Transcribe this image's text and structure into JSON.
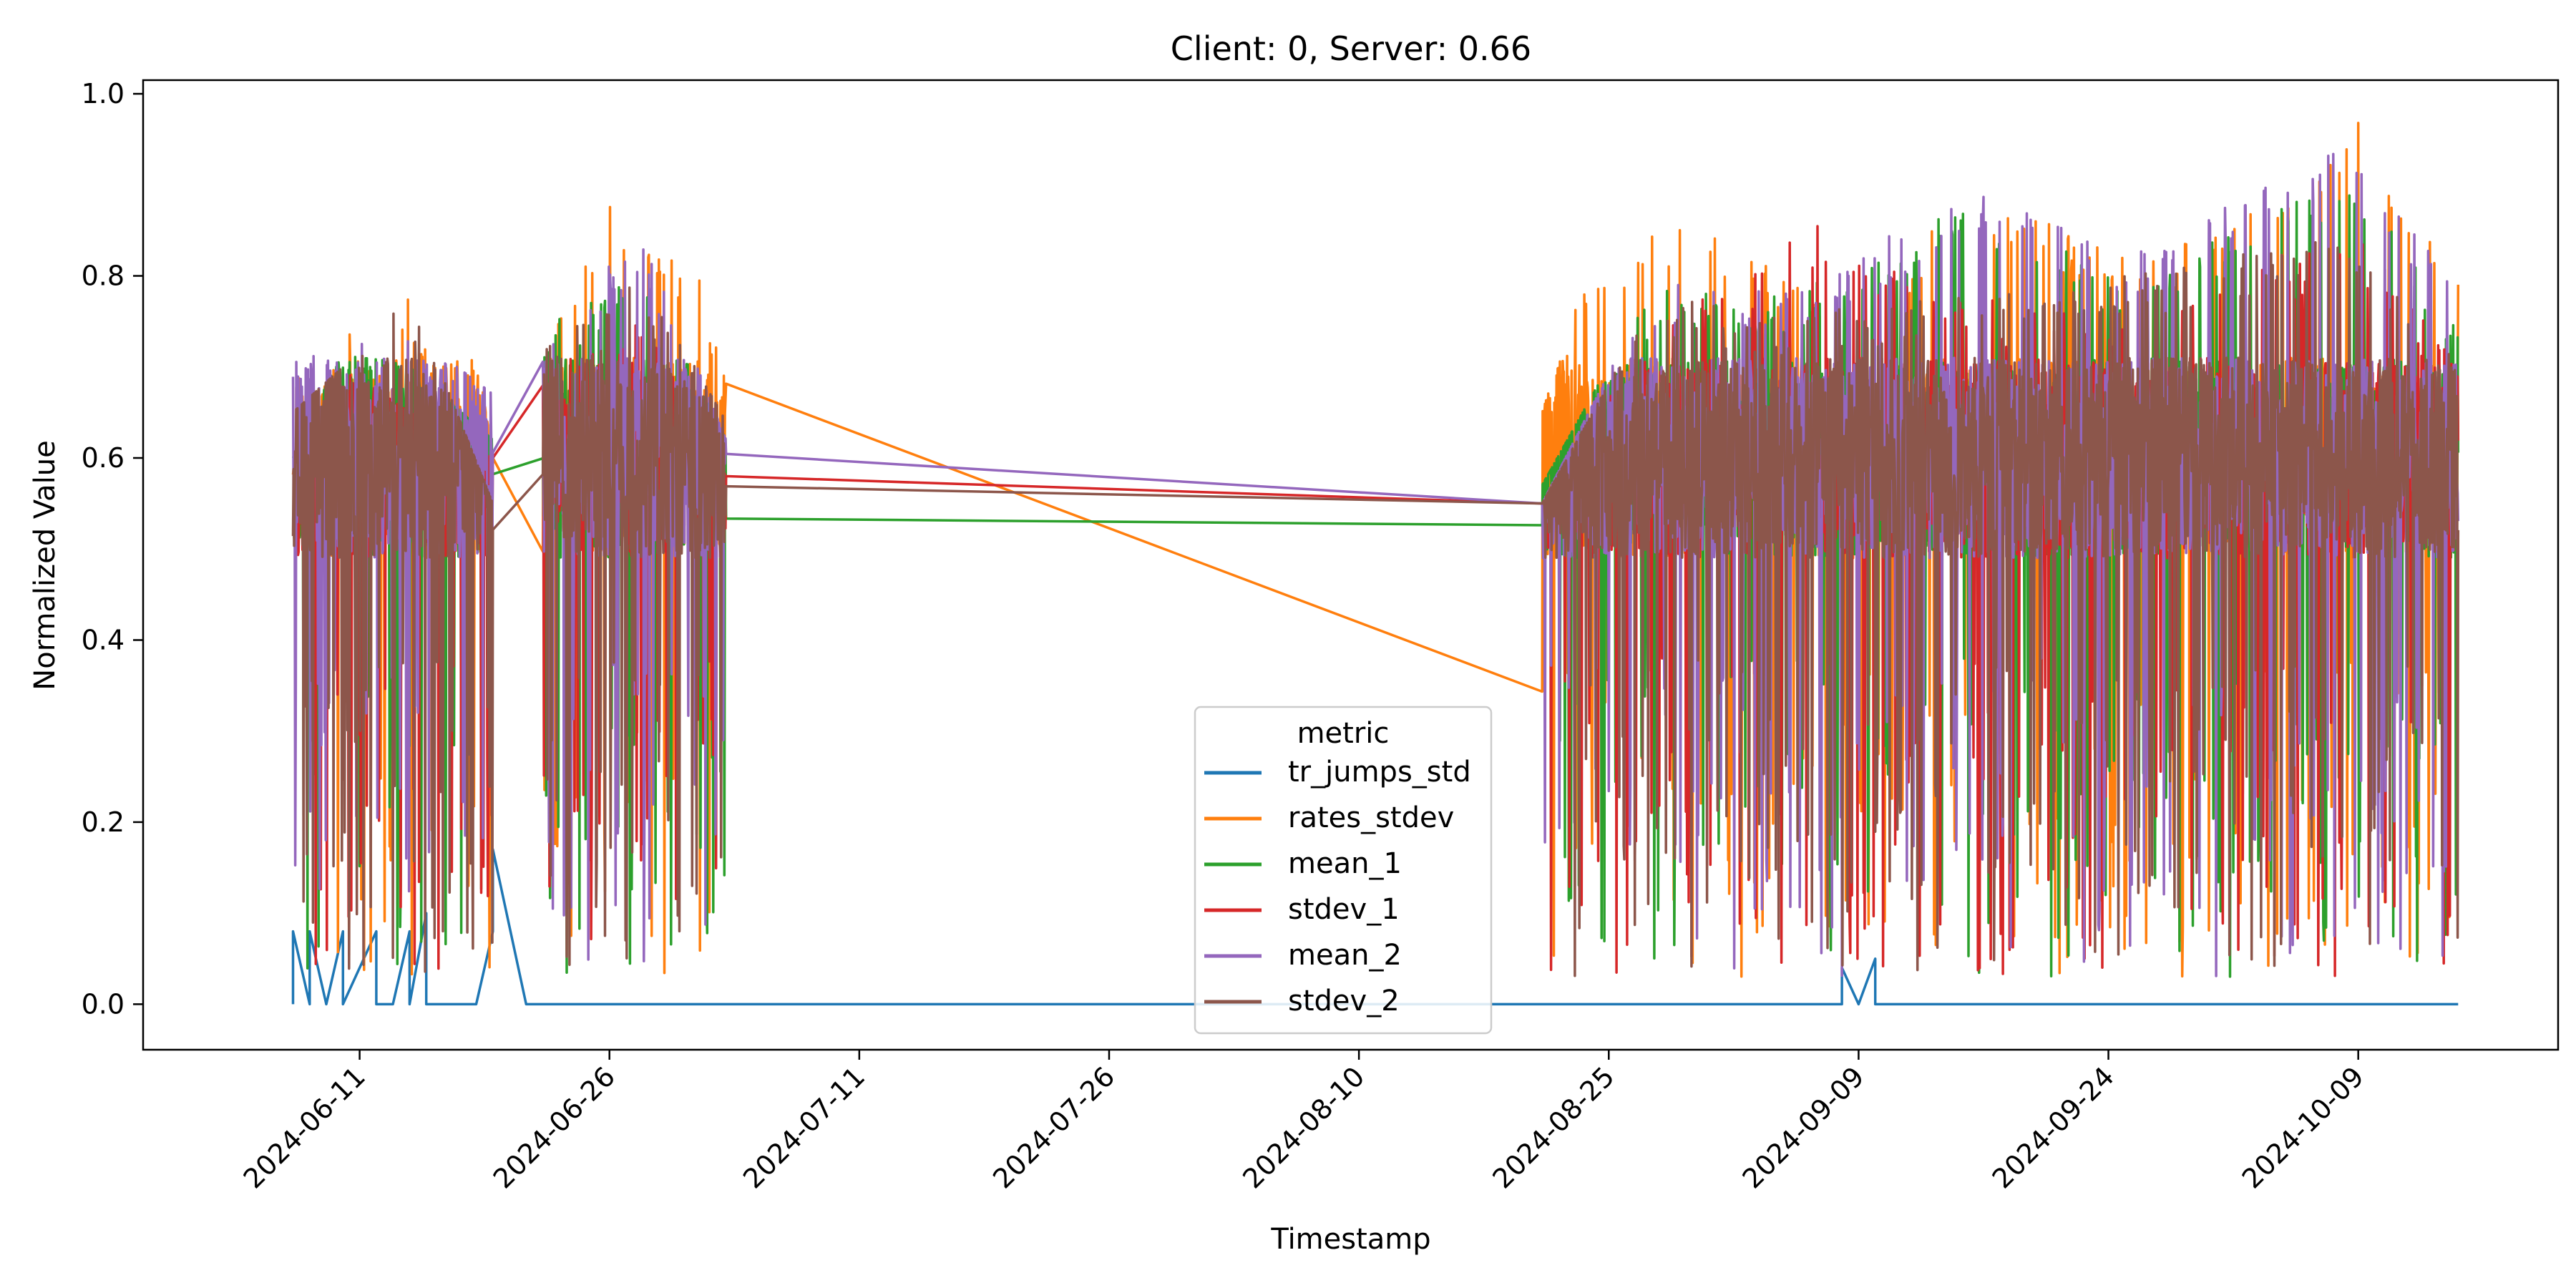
{
  "chart_data": {
    "type": "line",
    "title": "Client: 0, Server: 0.66",
    "xlabel": "Timestamp",
    "ylabel": "Normalized Value",
    "ylim": [
      -0.05,
      1.015
    ],
    "xlim": [
      "2024-05-29",
      "2024-10-21"
    ],
    "x_ticks": [
      "2024-06-11",
      "2024-06-26",
      "2024-07-11",
      "2024-07-26",
      "2024-08-10",
      "2024-08-25",
      "2024-09-09",
      "2024-09-24",
      "2024-10-09"
    ],
    "y_ticks": [
      0.0,
      0.2,
      0.4,
      0.6,
      0.8,
      1.0
    ],
    "y_tick_labels": [
      "0.0",
      "0.2",
      "0.4",
      "0.6",
      "0.8",
      "1.0"
    ],
    "grid": false,
    "legend": {
      "title": "metric",
      "placement": "bottom-center"
    },
    "data_segments": [
      {
        "start": "2024-06-07",
        "end": "2024-06-19"
      },
      {
        "start": "2024-06-22",
        "end": "2024-07-03"
      },
      {
        "start": "2024-08-21",
        "end": "2024-10-15"
      }
    ],
    "series": [
      {
        "name": "tr_jumps_std",
        "color": "#1f77b4",
        "points": [
          [
            "2024-06-07",
            0.0
          ],
          [
            "2024-06-07",
            0.08
          ],
          [
            "2024-06-08",
            0.0
          ],
          [
            "2024-06-08",
            0.08
          ],
          [
            "2024-06-09",
            0.0
          ],
          [
            "2024-06-10",
            0.08
          ],
          [
            "2024-06-10",
            0.0
          ],
          [
            "2024-06-12",
            0.08
          ],
          [
            "2024-06-12",
            0.0
          ],
          [
            "2024-06-13",
            0.0
          ],
          [
            "2024-06-14",
            0.08
          ],
          [
            "2024-06-14",
            0.0
          ],
          [
            "2024-06-15",
            0.1
          ],
          [
            "2024-06-15",
            0.0
          ],
          [
            "2024-06-18",
            0.0
          ],
          [
            "2024-06-19",
            0.08
          ],
          [
            "2024-06-19",
            0.17
          ],
          [
            "2024-06-21",
            0.0
          ],
          [
            "2024-09-08",
            0.0
          ],
          [
            "2024-09-08",
            0.04
          ],
          [
            "2024-09-09",
            0.0
          ],
          [
            "2024-09-10",
            0.05
          ],
          [
            "2024-09-10",
            0.0
          ],
          [
            "2024-10-15",
            0.0
          ]
        ]
      },
      {
        "name": "rates_stdev",
        "color": "#ff7f0e",
        "points": [
          [
            "2024-06-07",
            0.73
          ],
          [
            "2024-06-08",
            0.62
          ],
          [
            "2024-06-10",
            0.75
          ],
          [
            "2024-06-12",
            0.68
          ],
          [
            "2024-06-14",
            0.78
          ],
          [
            "2024-06-16",
            0.7
          ],
          [
            "2024-06-18",
            0.72
          ],
          [
            "2024-06-19",
            0.6
          ],
          [
            "2024-06-22",
            0.78
          ],
          [
            "2024-06-24",
            0.8
          ],
          [
            "2024-06-26",
            0.88
          ],
          [
            "2024-06-28",
            0.84
          ],
          [
            "2024-07-01",
            0.82
          ],
          [
            "2024-07-03",
            0.72
          ],
          [
            "2024-07-03",
            0.58
          ],
          [
            "2024-08-21",
            0.65
          ],
          [
            "2024-08-24",
            0.82
          ],
          [
            "2024-08-30",
            0.87
          ],
          [
            "2024-09-05",
            0.8
          ],
          [
            "2024-09-09",
            0.72
          ],
          [
            "2024-09-15",
            0.92
          ],
          [
            "2024-09-20",
            0.86
          ],
          [
            "2024-09-26",
            0.82
          ],
          [
            "2024-10-02",
            0.87
          ],
          [
            "2024-10-09",
            0.97
          ],
          [
            "2024-10-12",
            0.89
          ],
          [
            "2024-10-15",
            0.8
          ]
        ]
      },
      {
        "name": "mean_1",
        "color": "#2ca02c",
        "points": [
          [
            "2024-06-07",
            0.6
          ],
          [
            "2024-06-10",
            0.72
          ],
          [
            "2024-06-14",
            0.7
          ],
          [
            "2024-06-19",
            0.62
          ],
          [
            "2024-06-22",
            0.75
          ],
          [
            "2024-06-28",
            0.8
          ],
          [
            "2024-07-03",
            0.62
          ],
          [
            "2024-08-21",
            0.57
          ],
          [
            "2024-08-28",
            0.8
          ],
          [
            "2024-09-05",
            0.78
          ],
          [
            "2024-09-15",
            0.88
          ],
          [
            "2024-09-25",
            0.8
          ],
          [
            "2024-10-09",
            0.92
          ],
          [
            "2024-10-15",
            0.75
          ]
        ]
      },
      {
        "name": "stdev_1",
        "color": "#d62728",
        "points": [
          [
            "2024-06-07",
            0.52
          ],
          [
            "2024-06-10",
            0.7
          ],
          [
            "2024-06-14",
            0.65
          ],
          [
            "2024-06-19",
            0.6
          ],
          [
            "2024-06-22",
            0.7
          ],
          [
            "2024-06-28",
            0.75
          ],
          [
            "2024-07-03",
            0.58
          ],
          [
            "2024-08-21",
            0.55
          ],
          [
            "2024-08-28",
            0.75
          ],
          [
            "2024-09-07",
            0.86
          ],
          [
            "2024-09-15",
            0.78
          ],
          [
            "2024-09-25",
            0.75
          ],
          [
            "2024-10-09",
            0.85
          ],
          [
            "2024-10-15",
            0.7
          ]
        ]
      },
      {
        "name": "mean_2",
        "color": "#9467bd",
        "points": [
          [
            "2024-06-07",
            0.72
          ],
          [
            "2024-06-10",
            0.73
          ],
          [
            "2024-06-14",
            0.74
          ],
          [
            "2024-06-19",
            0.67
          ],
          [
            "2024-06-22",
            0.75
          ],
          [
            "2024-06-28",
            0.85
          ],
          [
            "2024-07-03",
            0.62
          ],
          [
            "2024-08-21",
            0.55
          ],
          [
            "2024-08-28",
            0.8
          ],
          [
            "2024-09-05",
            0.78
          ],
          [
            "2024-09-16",
            0.9
          ],
          [
            "2024-09-25",
            0.82
          ],
          [
            "2024-10-09",
            0.95
          ],
          [
            "2024-10-15",
            0.78
          ]
        ]
      },
      {
        "name": "stdev_2",
        "color": "#8c564b",
        "points": [
          [
            "2024-06-07",
            0.65
          ],
          [
            "2024-06-10",
            0.7
          ],
          [
            "2024-06-14",
            0.78
          ],
          [
            "2024-06-19",
            0.55
          ],
          [
            "2024-06-22",
            0.72
          ],
          [
            "2024-06-28",
            0.8
          ],
          [
            "2024-07-03",
            0.64
          ],
          [
            "2024-08-21",
            0.55
          ],
          [
            "2024-08-28",
            0.78
          ],
          [
            "2024-09-05",
            0.76
          ],
          [
            "2024-09-15",
            0.78
          ],
          [
            "2024-09-25",
            0.8
          ],
          [
            "2024-10-09",
            0.85
          ],
          [
            "2024-10-15",
            0.7
          ]
        ]
      }
    ]
  }
}
